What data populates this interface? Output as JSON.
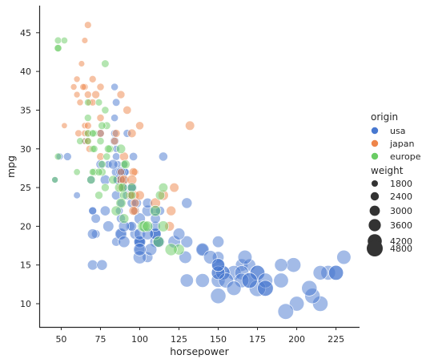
{
  "chart_data": {
    "type": "scatter",
    "xlabel": "horsepower",
    "ylabel": "mpg",
    "xlim": [
      36,
      240
    ],
    "ylim": [
      7,
      48.5
    ],
    "xticks": [
      50,
      75,
      100,
      125,
      150,
      175,
      200,
      225
    ],
    "yticks": [
      10,
      15,
      20,
      25,
      30,
      35,
      40,
      45
    ],
    "grid": false,
    "legend_placement": "right",
    "hue": {
      "title": "origin",
      "entries": [
        {
          "name": "usa",
          "color": "#4878d0"
        },
        {
          "name": "japan",
          "color": "#ee854a"
        },
        {
          "name": "europe",
          "color": "#6acc64"
        }
      ]
    },
    "size": {
      "title": "weight",
      "entries": [
        1800,
        2400,
        3000,
        3600,
        4200,
        4800
      ],
      "range": [
        1600,
        5200
      ]
    },
    "series": [
      {
        "name": "usa",
        "color": "#4878d0",
        "points": [
          [
            130,
            18,
            3500
          ],
          [
            165,
            15,
            3700
          ],
          [
            150,
            18,
            3400
          ],
          [
            150,
            16,
            3400
          ],
          [
            140,
            17,
            3450
          ],
          [
            198,
            15,
            4350
          ],
          [
            220,
            14,
            4350
          ],
          [
            215,
            14,
            4300
          ],
          [
            225,
            14,
            4400
          ],
          [
            190,
            15,
            3850
          ],
          [
            170,
            15,
            3600
          ],
          [
            160,
            14,
            4300
          ],
          [
            150,
            15,
            3800
          ],
          [
            225,
            14,
            4400
          ],
          [
            95,
            24,
            2400
          ],
          [
            97,
            22,
            2750
          ],
          [
            85,
            18,
            2600
          ],
          [
            88,
            21,
            2600
          ],
          [
            46,
            26,
            1800
          ],
          [
            87,
            22,
            2200
          ],
          [
            90,
            28,
            2200
          ],
          [
            95,
            25,
            2500
          ],
          [
            113,
            22,
            2600
          ],
          [
            90,
            26,
            2300
          ],
          [
            215,
            10,
            4600
          ],
          [
            200,
            10,
            4400
          ],
          [
            210,
            11,
            4600
          ],
          [
            193,
            9,
            4700
          ],
          [
            88,
            27,
            2150
          ],
          [
            100,
            18,
            3000
          ],
          [
            105,
            16,
            3100
          ],
          [
            100,
            17,
            3100
          ],
          [
            88,
            19,
            3000
          ],
          [
            100,
            18,
            2900
          ],
          [
            165,
            14,
            4200
          ],
          [
            175,
            14,
            4500
          ],
          [
            153,
            14,
            4200
          ],
          [
            150,
            14,
            4100
          ],
          [
            180,
            12,
            4900
          ],
          [
            170,
            13,
            4700
          ],
          [
            175,
            12,
            4950
          ],
          [
            110,
            18,
            3300
          ],
          [
            72,
            19,
            2500
          ],
          [
            100,
            18,
            3300
          ],
          [
            88,
            23,
            2300
          ],
          [
            86,
            28,
            2100
          ],
          [
            90,
            25,
            2300
          ],
          [
            70,
            15,
            3000
          ],
          [
            76,
            15,
            3100
          ],
          [
            65,
            31,
            2000
          ],
          [
            69,
            26,
            2400
          ],
          [
            60,
            24,
            1950
          ],
          [
            70,
            22,
            2200
          ],
          [
            95,
            23,
            2700
          ],
          [
            80,
            28,
            2150
          ],
          [
            54,
            29,
            2300
          ],
          [
            90,
            27,
            2600
          ],
          [
            86,
            26,
            2400
          ],
          [
            165,
            13,
            4300
          ],
          [
            175,
            14,
            4400
          ],
          [
            150,
            13,
            4100
          ],
          [
            153,
            14,
            4200
          ],
          [
            150,
            11,
            4600
          ],
          [
            208,
            12,
            4600
          ],
          [
            155,
            13,
            4500
          ],
          [
            160,
            12,
            4300
          ],
          [
            190,
            13,
            4400
          ],
          [
            97,
            19,
            3000
          ],
          [
            150,
            15,
            3700
          ],
          [
            130,
            13,
            3900
          ],
          [
            140,
            13,
            4100
          ],
          [
            150,
            14,
            4000
          ],
          [
            112,
            18,
            3600
          ],
          [
            105,
            22,
            3300
          ],
          [
            100,
            21,
            3300
          ],
          [
            88,
            26,
            2400
          ],
          [
            140,
            17,
            3900
          ],
          [
            167,
            16,
            4200
          ],
          [
            170,
            13,
            4600
          ],
          [
            180,
            13,
            4400
          ],
          [
            100,
            16,
            3900
          ],
          [
            88,
            19,
            3500
          ],
          [
            72,
            21,
            2700
          ],
          [
            94,
            20,
            2600
          ],
          [
            90,
            25,
            2500
          ],
          [
            85,
            24,
            2700
          ],
          [
            107,
            17,
            3600
          ],
          [
            90,
            18,
            3400
          ],
          [
            145,
            16,
            4000
          ],
          [
            230,
            16,
            4200
          ],
          [
            49,
            29,
            2000
          ],
          [
            75,
            32,
            2200
          ],
          [
            91,
            27,
            2100
          ],
          [
            112,
            18,
            3200
          ],
          [
            150,
            15,
            3900
          ],
          [
            110,
            19,
            3200
          ],
          [
            122,
            18,
            3700
          ],
          [
            180,
            12,
            4700
          ],
          [
            95,
            20,
            2800
          ],
          [
            100,
            18,
            3500
          ],
          [
            100,
            17,
            3700
          ],
          [
            110,
            19,
            3400
          ],
          [
            78,
            22,
            2900
          ],
          [
            100,
            19,
            3400
          ],
          [
            85,
            29,
            2200
          ],
          [
            90,
            25,
            2400
          ],
          [
            105,
            23,
            2900
          ],
          [
            125,
            19,
            3500
          ],
          [
            129,
            16,
            3700
          ],
          [
            85,
            30,
            2000
          ],
          [
            110,
            19,
            3300
          ],
          [
            75,
            28,
            2600
          ],
          [
            84,
            32,
            2200
          ],
          [
            84,
            38,
            2100
          ],
          [
            92,
            32,
            2300
          ],
          [
            110,
            22,
            2900
          ],
          [
            85,
            36,
            2200
          ],
          [
            84,
            34,
            2100
          ],
          [
            130,
            23,
            3100
          ],
          [
            70,
            22,
            2300
          ],
          [
            110,
            20,
            2900
          ],
          [
            85,
            27,
            2700
          ],
          [
            115,
            29,
            2600
          ],
          [
            90,
            20,
            3200
          ],
          [
            105,
            19,
            3400
          ],
          [
            86,
            26,
            2700
          ],
          [
            88,
            27,
            2900
          ],
          [
            92,
            24,
            2700
          ],
          [
            70,
            19,
            3000
          ],
          [
            98,
            23,
            2800
          ],
          [
            83,
            28,
            2800
          ],
          [
            96,
            29,
            2400
          ],
          [
            84,
            31,
            2600
          ],
          [
            110,
            21,
            2900
          ],
          [
            95,
            25,
            3000
          ],
          [
            80,
            20,
            3200
          ],
          [
            78,
            26,
            2900
          ]
        ]
      },
      {
        "name": "japan",
        "color": "#ee854a",
        "points": [
          [
            95,
            24,
            2400
          ],
          [
            88,
            27,
            2100
          ],
          [
            97,
            27,
            2100
          ],
          [
            65,
            31,
            1800
          ],
          [
            61,
            32,
            2000
          ],
          [
            65,
            33,
            1800
          ],
          [
            52,
            33,
            1650
          ],
          [
            67,
            32,
            1900
          ],
          [
            75,
            38,
            2100
          ],
          [
            67,
            37,
            2050
          ],
          [
            63,
            41,
            1750
          ],
          [
            65,
            44,
            1750
          ],
          [
            68,
            36,
            1950
          ],
          [
            60,
            39,
            1800
          ],
          [
            75,
            32,
            2200
          ],
          [
            58,
            38,
            1800
          ],
          [
            65,
            38,
            1900
          ],
          [
            97,
            24,
            2500
          ],
          [
            94,
            24,
            2500
          ],
          [
            122,
            25,
            2700
          ],
          [
            88,
            26,
            2600
          ],
          [
            132,
            33,
            2700
          ],
          [
            100,
            33,
            2350
          ],
          [
            96,
            27,
            2500
          ],
          [
            97,
            23,
            2500
          ],
          [
            75,
            34,
            2100
          ],
          [
            67,
            46,
            2000
          ],
          [
            60,
            37,
            1800
          ],
          [
            62,
            36,
            1850
          ],
          [
            65,
            32,
            1900
          ],
          [
            90,
            26,
            2800
          ],
          [
            95,
            26,
            2900
          ],
          [
            110,
            23,
            3000
          ],
          [
            100,
            24,
            2700
          ],
          [
            97,
            22,
            2400
          ],
          [
            68,
            30,
            2000
          ],
          [
            67,
            31,
            2000
          ],
          [
            72,
            37,
            2300
          ],
          [
            75,
            29,
            2200
          ],
          [
            70,
            39,
            2050
          ],
          [
            96,
            22,
            2600
          ],
          [
            85,
            32,
            2300
          ],
          [
            84,
            31,
            2200
          ],
          [
            92,
            35,
            2400
          ],
          [
            95,
            32,
            2500
          ],
          [
            67,
            33,
            2050
          ],
          [
            90,
            29,
            2600
          ],
          [
            119,
            20,
            2800
          ],
          [
            70,
            36,
            2000
          ],
          [
            64,
            38,
            1900
          ],
          [
            88,
            37,
            2300
          ],
          [
            120,
            22,
            2800
          ],
          [
            115,
            24,
            3000
          ],
          [
            88,
            25,
            2500
          ]
        ]
      },
      {
        "name": "europe",
        "color": "#6acc64",
        "points": [
          [
            46,
            26,
            1800
          ],
          [
            87,
            25,
            2700
          ],
          [
            90,
            24,
            2600
          ],
          [
            95,
            25,
            2600
          ],
          [
            113,
            24,
            2700
          ],
          [
            90,
            28,
            2200
          ],
          [
            70,
            30,
            2100
          ],
          [
            76,
            28,
            2200
          ],
          [
            60,
            27,
            1900
          ],
          [
            75,
            31,
            2100
          ],
          [
            48,
            43,
            2000
          ],
          [
            48,
            44,
            2000
          ],
          [
            48,
            43,
            2100
          ],
          [
            52,
            44,
            1900
          ],
          [
            78,
            41,
            2200
          ],
          [
            71,
            32,
            2000
          ],
          [
            67,
            36,
            2000
          ],
          [
            74,
            36,
            2000
          ],
          [
            48,
            29,
            2000
          ],
          [
            67,
            31,
            2000
          ],
          [
            78,
            25,
            2300
          ],
          [
            83,
            26,
            2500
          ],
          [
            115,
            25,
            2700
          ],
          [
            67,
            34,
            2050
          ],
          [
            79,
            33,
            2200
          ],
          [
            71,
            30,
            2100
          ],
          [
            62,
            31,
            2000
          ],
          [
            88,
            30,
            2700
          ],
          [
            112,
            18,
            3200
          ],
          [
            125,
            17,
            3200
          ],
          [
            71,
            27,
            2200
          ],
          [
            102,
            20,
            3200
          ],
          [
            103,
            20,
            3300
          ],
          [
            81,
            30,
            2300
          ],
          [
            95,
            24,
            2400
          ],
          [
            74,
            24,
            2300
          ],
          [
            115,
            20,
            3200
          ],
          [
            90,
            21,
            2800
          ],
          [
            67,
            32,
            2100
          ],
          [
            88,
            23,
            2900
          ],
          [
            76,
            27,
            2300
          ],
          [
            69,
            26,
            2400
          ],
          [
            120,
            17,
            3600
          ],
          [
            85,
            22,
            2900
          ],
          [
            89,
            25,
            2700
          ],
          [
            76,
            33,
            2200
          ],
          [
            74,
            27,
            2200
          ],
          [
            105,
            20,
            3100
          ],
          [
            78,
            35,
            2100
          ],
          [
            70,
            27,
            2000
          ],
          [
            80,
            30,
            2300
          ],
          [
            91,
            28,
            2600
          ],
          [
            110,
            22,
            3200
          ],
          [
            79,
            29,
            2100
          ],
          [
            70,
            32,
            2100
          ]
        ]
      }
    ]
  }
}
